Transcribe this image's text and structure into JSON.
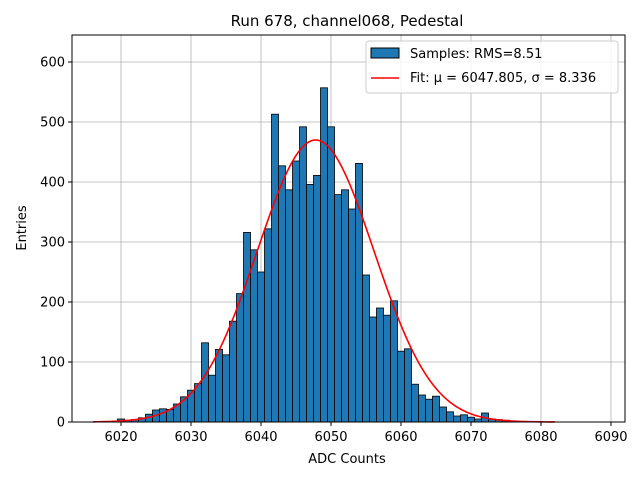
{
  "chart_data": {
    "type": "bar",
    "title": "Run 678, channel068, Pedestal",
    "xlabel": "ADC Counts",
    "ylabel": "Entries",
    "xlim": [
      6013,
      6092
    ],
    "ylim": [
      0,
      645
    ],
    "xticks": [
      6020,
      6030,
      6040,
      6050,
      6060,
      6070,
      6080,
      6090
    ],
    "yticks": [
      0,
      100,
      200,
      300,
      400,
      500,
      600
    ],
    "grid": true,
    "legend_position": "top-right",
    "colors": {
      "bar": "#1f77b4",
      "fit": "#ff0000",
      "grid": "#b0b0b0"
    },
    "series": [
      {
        "name": "Samples: RMS=8.51",
        "type": "histogram",
        "x": [
          6016,
          6017,
          6018,
          6019,
          6020,
          6021,
          6022,
          6023,
          6024,
          6025,
          6026,
          6027,
          6028,
          6029,
          6030,
          6031,
          6032,
          6033,
          6034,
          6035,
          6036,
          6037,
          6038,
          6039,
          6040,
          6041,
          6042,
          6043,
          6044,
          6045,
          6046,
          6047,
          6048,
          6049,
          6050,
          6051,
          6052,
          6053,
          6054,
          6055,
          6056,
          6057,
          6058,
          6059,
          6060,
          6061,
          6062,
          6063,
          6064,
          6065,
          6066,
          6067,
          6068,
          6069,
          6070,
          6071,
          6072,
          6073,
          6074,
          6075,
          6076,
          6077,
          6078,
          6079,
          6080,
          6081,
          6082
        ],
        "values": [
          0,
          0,
          0,
          0,
          5,
          3,
          4,
          7,
          13,
          20,
          22,
          21,
          30,
          42,
          53,
          64,
          132,
          78,
          121,
          112,
          168,
          214,
          316,
          287,
          250,
          322,
          513,
          427,
          387,
          435,
          492,
          396,
          411,
          557,
          492,
          379,
          387,
          355,
          431,
          245,
          175,
          190,
          178,
          202,
          118,
          122,
          63,
          45,
          38,
          43,
          25,
          17,
          10,
          12,
          8,
          5,
          15,
          5,
          4,
          3,
          1,
          1,
          0,
          0,
          0,
          0,
          0
        ]
      },
      {
        "name": "Fit: μ = 6047.805, σ = 8.336",
        "type": "gaussian",
        "mu": 6047.805,
        "sigma": 8.336,
        "amplitude": 470,
        "x_range": [
          6016,
          6082
        ]
      }
    ]
  }
}
